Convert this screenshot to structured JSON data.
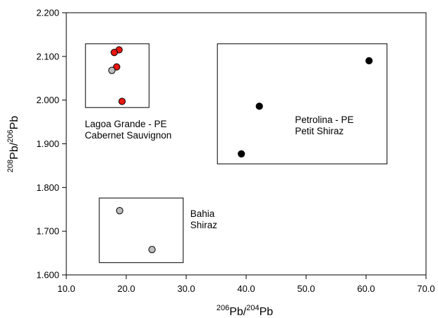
{
  "chart_data": {
    "type": "scatter",
    "x_axis": {
      "label_parts": [
        "206",
        "Pb/",
        "204",
        "Pb"
      ],
      "range": [
        10,
        70
      ],
      "ticks": [
        10,
        20,
        30,
        40,
        50,
        60,
        70
      ],
      "tick_labels": [
        "10.0",
        "20.0",
        "30.0",
        "40.0",
        "50.0",
        "60.0",
        "70.0"
      ]
    },
    "y_axis": {
      "label_parts": [
        "208",
        "Pb/",
        "206",
        "Pb"
      ],
      "range": [
        1.6,
        2.2
      ],
      "ticks": [
        1.6,
        1.7,
        1.8,
        1.9,
        2.0,
        2.1,
        2.2
      ],
      "tick_labels": [
        "1.600",
        "1.700",
        "1.800",
        "1.900",
        "2.000",
        "2.100",
        "2.200"
      ]
    },
    "grid": false,
    "groups": [
      {
        "lines": [
          "Lagoa Grande - PE",
          "Cabernet Sauvignon"
        ],
        "box": {
          "x": [
            13.2,
            23.8
          ],
          "y": [
            1.983,
            2.129
          ]
        },
        "points": [
          {
            "x": 18.8,
            "y": 2.115,
            "color": "#e8170f"
          },
          {
            "x": 18.0,
            "y": 2.109,
            "color": "#e8170f"
          },
          {
            "x": 18.4,
            "y": 2.076,
            "color": "#e8170f"
          },
          {
            "x": 17.6,
            "y": 2.068,
            "color": "#bdbdbd"
          },
          {
            "x": 19.3,
            "y": 1.997,
            "color": "#e8170f"
          }
        ]
      },
      {
        "lines": [
          "Petrolina - PE",
          "Petit Shiraz"
        ],
        "box": {
          "x": [
            35.2,
            63.5
          ],
          "y": [
            1.854,
            2.129
          ]
        },
        "points": [
          {
            "x": 60.5,
            "y": 2.09,
            "color": "#000000"
          },
          {
            "x": 42.2,
            "y": 1.986,
            "color": "#000000"
          },
          {
            "x": 39.2,
            "y": 1.877,
            "color": "#000000"
          }
        ]
      },
      {
        "lines": [
          "Bahia",
          "Shiraz"
        ],
        "box": {
          "x": [
            15.5,
            29.5
          ],
          "y": [
            1.628,
            1.776
          ]
        },
        "points": [
          {
            "x": 18.9,
            "y": 1.747,
            "color": "#bdbdbd"
          },
          {
            "x": 24.3,
            "y": 1.658,
            "color": "#bdbdbd"
          }
        ]
      }
    ]
  }
}
